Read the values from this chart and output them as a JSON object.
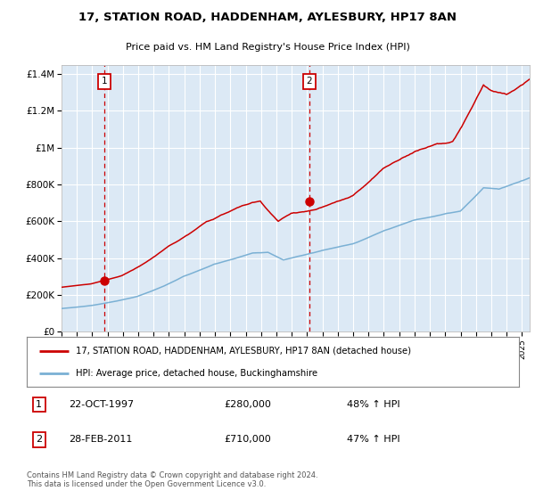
{
  "title1": "17, STATION ROAD, HADDENHAM, AYLESBURY, HP17 8AN",
  "title2": "Price paid vs. HM Land Registry's House Price Index (HPI)",
  "bg_color": "#dce9f5",
  "red_line_color": "#cc0000",
  "blue_line_color": "#7ab0d4",
  "vline_color": "#cc0000",
  "purchase1_year": 1997.8,
  "purchase1_value": 280000,
  "purchase2_year": 2011.15,
  "purchase2_value": 710000,
  "ylim": [
    0,
    1450000
  ],
  "xlim_start": 1995,
  "xlim_end": 2025.5,
  "ylabel_ticks": [
    0,
    200000,
    400000,
    600000,
    800000,
    1000000,
    1200000,
    1400000
  ],
  "ylabel_labels": [
    "£0",
    "£200K",
    "£400K",
    "£600K",
    "£800K",
    "£1M",
    "£1.2M",
    "£1.4M"
  ],
  "legend1": "17, STATION ROAD, HADDENHAM, AYLESBURY, HP17 8AN (detached house)",
  "legend2": "HPI: Average price, detached house, Buckinghamshire",
  "ann1_label": "1",
  "ann1_date": "22-OCT-1997",
  "ann1_price": "£280,000",
  "ann1_hpi": "48% ↑ HPI",
  "ann2_label": "2",
  "ann2_date": "28-FEB-2011",
  "ann2_price": "£710,000",
  "ann2_hpi": "47% ↑ HPI",
  "footer": "Contains HM Land Registry data © Crown copyright and database right 2024.\nThis data is licensed under the Open Government Licence v3.0."
}
